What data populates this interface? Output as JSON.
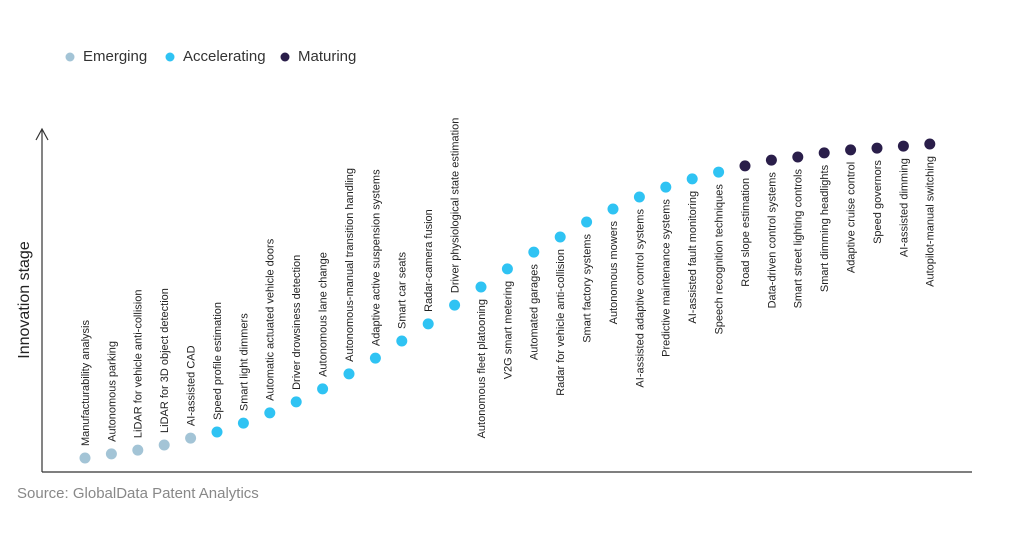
{
  "chart_data": {
    "type": "scatter",
    "y_label": "Innovation stage",
    "source": "Source: GlobalData Patent Analytics",
    "categories": [
      "Manufacturability analysis",
      "Autonomous parking",
      "LiDAR for vehicle anti-collision",
      "LiDAR for 3D object detection",
      "AI-assisted CAD",
      "Speed profile estimation",
      "Smart light dimmers",
      "Automatic actuated vehicle doors",
      "Driver drowsiness detection",
      "Autonomous lane change",
      "Autonomous-manual transition handling",
      "Adaptive active suspension systems",
      "Smart car seats",
      "Radar-camera fusion",
      "Driver physiological state estimation",
      "Autonomous fleet platooning",
      "V2G smart metering",
      "Automated garages",
      "Radar for vehicle anti-collision",
      "Smart factory systems",
      "Autonomous mowers",
      "AI-assisted adaptive control systems",
      "Predictive maintenance systems",
      "AI-assisted fault monitoring",
      "Speech recognition techniques",
      "Road slope estimation",
      "Data-driven control systems",
      "Smart street lighting controls",
      "Smart dimming headlights",
      "Adaptive cruise control",
      "Speed governors",
      "AI-assisted dimming",
      "Autopilot-manual switching"
    ],
    "series": [
      {
        "name": "Emerging",
        "color": "#a3c4d6",
        "values": [
          4.1,
          5.3,
          6.4,
          7.9,
          9.9,
          null,
          null,
          null,
          null,
          null,
          null,
          null,
          null,
          null,
          null,
          null,
          null,
          null,
          null,
          null,
          null,
          null,
          null,
          null,
          null,
          null,
          null,
          null,
          null,
          null,
          null,
          null,
          null
        ]
      },
      {
        "name": "Accelerating",
        "color": "#2fc3f3",
        "values": [
          null,
          null,
          null,
          null,
          null,
          11.7,
          14.3,
          17.3,
          20.5,
          24.3,
          28.7,
          33.3,
          38.3,
          43.3,
          48.8,
          54.1,
          59.4,
          64.3,
          68.7,
          73.1,
          76.9,
          80.4,
          83.3,
          85.7,
          87.7,
          null,
          null,
          null,
          null,
          null,
          null,
          null,
          null
        ]
      },
      {
        "name": "Maturing",
        "color": "#2a1e4a",
        "values": [
          null,
          null,
          null,
          null,
          null,
          null,
          null,
          null,
          null,
          null,
          null,
          null,
          null,
          null,
          null,
          null,
          null,
          null,
          null,
          null,
          null,
          null,
          null,
          null,
          null,
          89.5,
          91.2,
          92.1,
          93.3,
          94.2,
          94.7,
          95.3,
          95.9
        ]
      }
    ],
    "ylim": [
      0,
      100
    ]
  }
}
